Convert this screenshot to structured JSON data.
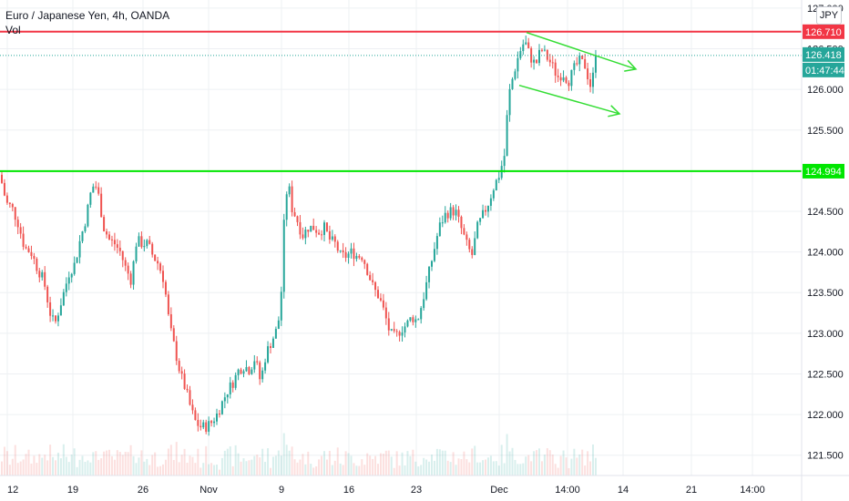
{
  "header": {
    "title": "Euro / Japanese Yen, 4h, OANDA",
    "indicator": "Vol",
    "currency": "JPY"
  },
  "colors": {
    "up": "#26a69a",
    "down": "#ef5350",
    "resistance": "#f23645",
    "support": "#00e600",
    "channel": "#33dd33",
    "last_price": "#26a69a",
    "grid": "#eef0f3"
  },
  "price_tags": {
    "resistance": "126.710",
    "last_price": "126.418",
    "countdown": "01:47:44",
    "support": "124.994"
  },
  "chart_data": {
    "type": "candlestick",
    "title": "Euro / Japanese Yen, 4h, OANDA",
    "ylim": [
      121.25,
      127.1
    ],
    "y_ticks": [
      "121.500",
      "122.000",
      "122.500",
      "123.000",
      "123.500",
      "124.000",
      "124.500",
      "125.000",
      "125.500",
      "126.000",
      "126.500",
      "127.000"
    ],
    "x_ticks": [
      "12",
      "19",
      "26",
      "Nov",
      "9",
      "16",
      "23",
      "Dec",
      "14:00",
      "14",
      "21",
      "14:00"
    ],
    "horizontal_lines": [
      {
        "label": "resistance",
        "value": 126.71
      },
      {
        "label": "support",
        "value": 124.994
      }
    ],
    "last_price": 126.418,
    "channel_upper": [
      126.7,
      126.25
    ],
    "channel_lower": [
      126.05,
      125.7
    ],
    "close_path": [
      [
        0,
        124.95
      ],
      [
        7,
        124.6
      ],
      [
        13,
        124.55
      ],
      [
        20,
        124.35
      ],
      [
        27,
        124.05
      ],
      [
        34,
        124.0
      ],
      [
        41,
        123.8
      ],
      [
        48,
        123.65
      ],
      [
        55,
        123.25
      ],
      [
        60,
        123.1
      ],
      [
        65,
        123.3
      ],
      [
        70,
        123.5
      ],
      [
        76,
        123.75
      ],
      [
        82,
        123.85
      ],
      [
        88,
        124.15
      ],
      [
        94,
        124.4
      ],
      [
        100,
        124.75
      ],
      [
        104,
        124.85
      ],
      [
        108,
        124.7
      ],
      [
        114,
        124.3
      ],
      [
        120,
        124.15
      ],
      [
        126,
        124.1
      ],
      [
        132,
        124.0
      ],
      [
        138,
        123.8
      ],
      [
        144,
        123.65
      ],
      [
        150,
        124.15
      ],
      [
        156,
        124.1
      ],
      [
        162,
        124.1
      ],
      [
        168,
        123.95
      ],
      [
        174,
        123.85
      ],
      [
        180,
        123.65
      ],
      [
        186,
        123.1
      ],
      [
        192,
        122.8
      ],
      [
        198,
        122.5
      ],
      [
        204,
        122.3
      ],
      [
        210,
        122.05
      ],
      [
        215,
        121.9
      ],
      [
        220,
        121.85
      ],
      [
        226,
        121.85
      ],
      [
        232,
        121.9
      ],
      [
        238,
        122.0
      ],
      [
        244,
        122.15
      ],
      [
        250,
        122.3
      ],
      [
        256,
        122.4
      ],
      [
        262,
        122.55
      ],
      [
        268,
        122.6
      ],
      [
        274,
        122.55
      ],
      [
        280,
        122.7
      ],
      [
        286,
        122.4
      ],
      [
        292,
        122.75
      ],
      [
        298,
        122.9
      ],
      [
        304,
        123.05
      ],
      [
        308,
        123.3
      ],
      [
        312,
        124.4
      ],
      [
        316,
        124.9
      ],
      [
        320,
        124.55
      ],
      [
        326,
        124.4
      ],
      [
        332,
        124.2
      ],
      [
        338,
        124.3
      ],
      [
        344,
        124.3
      ],
      [
        350,
        124.25
      ],
      [
        356,
        124.3
      ],
      [
        362,
        124.15
      ],
      [
        368,
        124.1
      ],
      [
        374,
        123.95
      ],
      [
        380,
        123.95
      ],
      [
        386,
        124.0
      ],
      [
        392,
        123.95
      ],
      [
        398,
        123.95
      ],
      [
        404,
        123.75
      ],
      [
        410,
        123.55
      ],
      [
        416,
        123.45
      ],
      [
        422,
        123.25
      ],
      [
        428,
        123.0
      ],
      [
        434,
        122.95
      ],
      [
        440,
        123.05
      ],
      [
        446,
        123.1
      ],
      [
        452,
        123.2
      ],
      [
        458,
        123.15
      ],
      [
        464,
        123.4
      ],
      [
        470,
        123.7
      ],
      [
        476,
        124.0
      ],
      [
        482,
        124.3
      ],
      [
        488,
        124.45
      ],
      [
        494,
        124.5
      ],
      [
        500,
        124.5
      ],
      [
        506,
        124.3
      ],
      [
        512,
        124.1
      ],
      [
        518,
        123.95
      ],
      [
        524,
        124.3
      ],
      [
        530,
        124.45
      ],
      [
        536,
        124.6
      ],
      [
        542,
        124.8
      ],
      [
        548,
        124.95
      ],
      [
        554,
        125.2
      ],
      [
        558,
        125.9
      ],
      [
        564,
        126.2
      ],
      [
        570,
        126.45
      ],
      [
        576,
        126.6
      ],
      [
        582,
        126.4
      ],
      [
        588,
        126.3
      ],
      [
        594,
        126.5
      ],
      [
        600,
        126.4
      ],
      [
        606,
        126.3
      ],
      [
        612,
        126.15
      ],
      [
        618,
        126.2
      ],
      [
        624,
        126.1
      ],
      [
        630,
        126.25
      ],
      [
        636,
        126.35
      ],
      [
        642,
        126.3
      ],
      [
        648,
        126.05
      ],
      [
        652,
        126.2
      ],
      [
        656,
        126.42
      ]
    ]
  }
}
